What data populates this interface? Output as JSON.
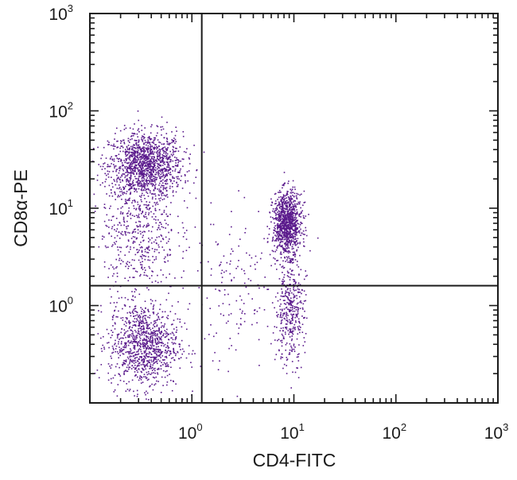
{
  "chart_data": {
    "type": "scatter",
    "xlabel": "CD4-FITC",
    "ylabel": "CD8α-PE",
    "xscale": "log",
    "yscale": "log",
    "xlim": [
      0.1,
      1000
    ],
    "ylim": [
      0.1,
      1000
    ],
    "grid": false,
    "point_color": "#5a1a8c",
    "x_ticks": [
      {
        "base": "10",
        "exp": "0",
        "value": 1
      },
      {
        "base": "10",
        "exp": "1",
        "value": 10
      },
      {
        "base": "10",
        "exp": "2",
        "value": 100
      },
      {
        "base": "10",
        "exp": "3",
        "value": 1000
      }
    ],
    "y_ticks": [
      {
        "base": "10",
        "exp": "0",
        "value": 1
      },
      {
        "base": "10",
        "exp": "1",
        "value": 10
      },
      {
        "base": "10",
        "exp": "2",
        "value": 100
      },
      {
        "base": "10",
        "exp": "3",
        "value": 1000
      }
    ],
    "gates": {
      "x": 1.25,
      "y": 1.6
    },
    "populations": [
      {
        "center": [
          0.35,
          28
        ],
        "spread": [
          0.18,
          0.17
        ],
        "count": 1300
      },
      {
        "center": [
          0.33,
          0.4
        ],
        "spread": [
          0.17,
          0.22
        ],
        "count": 1000
      },
      {
        "center": [
          0.3,
          6
        ],
        "spread": [
          0.18,
          0.35
        ],
        "count": 500
      },
      {
        "center": [
          8.5,
          7
        ],
        "spread": [
          0.07,
          0.16
        ],
        "count": 1000
      },
      {
        "center": [
          9,
          0.9
        ],
        "spread": [
          0.07,
          0.27
        ],
        "count": 380
      },
      {
        "center": [
          3,
          1.5
        ],
        "spread": [
          0.3,
          0.45
        ],
        "count": 170
      }
    ]
  }
}
